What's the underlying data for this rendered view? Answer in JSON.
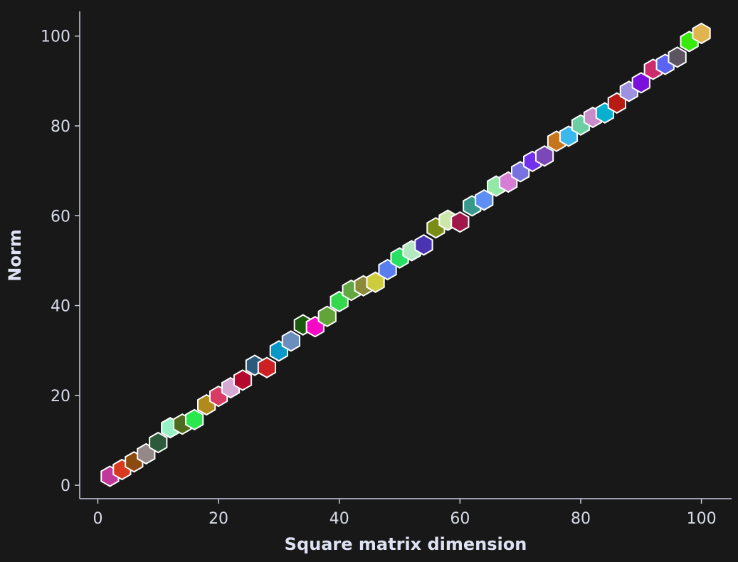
{
  "chart_data": {
    "type": "scatter",
    "title": "",
    "xlabel": "Square matrix dimension",
    "ylabel": "Norm",
    "xlim": [
      -3,
      105
    ],
    "ylim": [
      -3,
      105.5
    ],
    "xticks": [
      0,
      20,
      40,
      60,
      80,
      100
    ],
    "yticks": [
      0,
      20,
      40,
      60,
      80,
      100
    ],
    "marker": "hexagon",
    "grid": false,
    "legend": "none",
    "background": "#181818",
    "points": [
      {
        "x": 2,
        "y": 2.0,
        "color": "#c0389a"
      },
      {
        "x": 4,
        "y": 3.5,
        "color": "#d83a20"
      },
      {
        "x": 6,
        "y": 5.2,
        "color": "#8a4a10"
      },
      {
        "x": 8,
        "y": 7.0,
        "color": "#948888"
      },
      {
        "x": 10,
        "y": 9.5,
        "color": "#2e5a3c"
      },
      {
        "x": 12,
        "y": 12.8,
        "color": "#96f2c6"
      },
      {
        "x": 14,
        "y": 13.6,
        "color": "#4e6a1e"
      },
      {
        "x": 16,
        "y": 14.6,
        "color": "#28e84e"
      },
      {
        "x": 18,
        "y": 17.9,
        "color": "#b08a1a"
      },
      {
        "x": 20,
        "y": 19.8,
        "color": "#d83c64"
      },
      {
        "x": 22,
        "y": 21.7,
        "color": "#d6a8d4"
      },
      {
        "x": 24,
        "y": 23.4,
        "color": "#b4082e"
      },
      {
        "x": 26,
        "y": 26.7,
        "color": "#2a5a7c"
      },
      {
        "x": 28,
        "y": 26.2,
        "color": "#cc2024"
      },
      {
        "x": 30,
        "y": 29.9,
        "color": "#0898c8"
      },
      {
        "x": 32,
        "y": 32.1,
        "color": "#6a8ebe"
      },
      {
        "x": 34,
        "y": 35.7,
        "color": "#1a5a0c"
      },
      {
        "x": 36,
        "y": 35.3,
        "color": "#f40ac6"
      },
      {
        "x": 38,
        "y": 37.6,
        "color": "#62a43a"
      },
      {
        "x": 40,
        "y": 40.9,
        "color": "#34d84c"
      },
      {
        "x": 42,
        "y": 43.4,
        "color": "#62a842"
      },
      {
        "x": 44,
        "y": 44.4,
        "color": "#8c8a3a"
      },
      {
        "x": 46,
        "y": 45.2,
        "color": "#cccc3c"
      },
      {
        "x": 48,
        "y": 48.0,
        "color": "#5a7ef0"
      },
      {
        "x": 50,
        "y": 50.6,
        "color": "#28e064"
      },
      {
        "x": 52,
        "y": 52.2,
        "color": "#b4e8c0"
      },
      {
        "x": 54,
        "y": 53.5,
        "color": "#4a34b4"
      },
      {
        "x": 56,
        "y": 57.3,
        "color": "#7a8c14"
      },
      {
        "x": 58,
        "y": 59.0,
        "color": "#cce8a8"
      },
      {
        "x": 60,
        "y": 58.6,
        "color": "#a0184a"
      },
      {
        "x": 62,
        "y": 62.2,
        "color": "#38988c"
      },
      {
        "x": 64,
        "y": 63.5,
        "color": "#5c8ef4"
      },
      {
        "x": 66,
        "y": 66.6,
        "color": "#94e8a8"
      },
      {
        "x": 68,
        "y": 67.5,
        "color": "#d67ed6"
      },
      {
        "x": 70,
        "y": 69.8,
        "color": "#7872e0"
      },
      {
        "x": 72,
        "y": 72.1,
        "color": "#7030ec"
      },
      {
        "x": 74,
        "y": 73.3,
        "color": "#7c48b8"
      },
      {
        "x": 76,
        "y": 76.6,
        "color": "#c8741a"
      },
      {
        "x": 78,
        "y": 77.7,
        "color": "#3cb8ec"
      },
      {
        "x": 80,
        "y": 80.2,
        "color": "#6ad0a4"
      },
      {
        "x": 82,
        "y": 81.9,
        "color": "#c88cc8"
      },
      {
        "x": 84,
        "y": 82.9,
        "color": "#08b0d0"
      },
      {
        "x": 86,
        "y": 85.1,
        "color": "#b81a14"
      },
      {
        "x": 88,
        "y": 87.7,
        "color": "#9c92e0"
      },
      {
        "x": 90,
        "y": 89.6,
        "color": "#7a10dc"
      },
      {
        "x": 92,
        "y": 92.6,
        "color": "#cc2c6c"
      },
      {
        "x": 94,
        "y": 93.7,
        "color": "#5a64f0"
      },
      {
        "x": 96,
        "y": 95.3,
        "color": "#5c5460"
      },
      {
        "x": 98,
        "y": 98.8,
        "color": "#38ea0c"
      },
      {
        "x": 100,
        "y": 100.6,
        "color": "#e0b44e"
      }
    ]
  }
}
